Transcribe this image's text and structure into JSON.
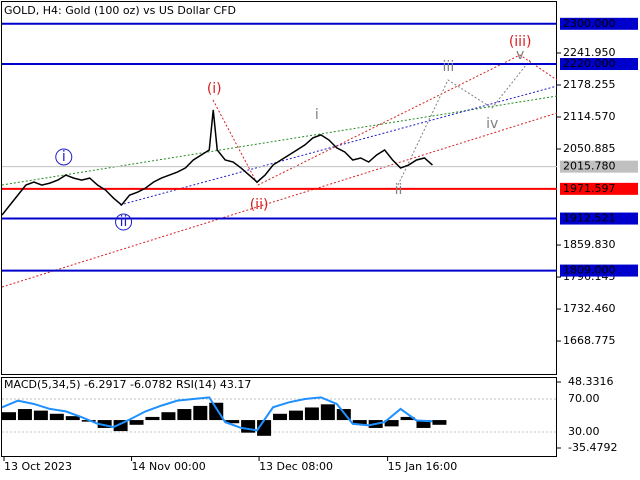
{
  "chart_data": [
    {
      "type": "line",
      "title": "GOLD, H4:  Gold (100 oz) vs US Dollar CFD",
      "x": [
        0,
        8,
        16,
        24,
        32,
        40,
        48,
        56,
        64,
        72,
        80,
        88,
        96,
        104,
        112,
        120,
        128,
        136,
        144,
        152,
        160,
        168,
        176,
        184,
        192,
        200,
        208,
        212,
        216,
        224,
        232,
        240,
        248,
        256,
        264,
        272,
        280,
        288,
        296,
        304,
        312,
        320,
        328,
        336,
        344,
        352,
        360,
        368,
        376,
        384,
        392,
        400,
        408,
        416,
        424,
        432
      ],
      "series": [
        {
          "name": "GOLD",
          "color": "#000000",
          "values": [
            1919.5,
            1939.5,
            1959.4,
            1979.2,
            1985.2,
            1979,
            1983,
            1989,
            1999,
            1993,
            1989,
            1993,
            1979,
            1969,
            1953,
            1939.5,
            1959,
            1965,
            1973,
            1985,
            1993,
            1999,
            2005,
            2013,
            2029,
            2039,
            2049,
            2128.5,
            2049,
            2029,
            2025,
            2013,
            1999,
            1985,
            1999,
            2019,
            2029,
            2039,
            2049,
            2059,
            2073,
            2079,
            2069,
            2053,
            2045,
            2029,
            2033,
            2025,
            2039,
            2049,
            2029,
            2013,
            2019,
            2029,
            2033,
            2019
          ]
        }
      ],
      "xlim": [
        0,
        557
      ],
      "xticks": [
        {
          "value": 2,
          "label": "13 Oct 2023"
        },
        {
          "value": 130,
          "label": "14 Nov 00:00"
        },
        {
          "value": 258,
          "label": "13 Dec 08:00"
        },
        {
          "value": 387,
          "label": "15 Jan 16:00"
        }
      ],
      "ylim": [
        1601.2,
        2343.4
      ],
      "yticks": [
        {
          "value": 2241.95,
          "label": "2241.950"
        },
        {
          "value": 2178.255,
          "label": "2178.255"
        },
        {
          "value": 2114.57,
          "label": "2114.570"
        },
        {
          "value": 2050.885,
          "label": "2050.885"
        },
        {
          "value": 1859.83,
          "label": "1859.830"
        },
        {
          "value": 1796.145,
          "label": "1796.145"
        },
        {
          "value": 1732.46,
          "label": "1732.460"
        },
        {
          "value": 1668.775,
          "label": "1668.775"
        }
      ],
      "levels": [
        {
          "value": 2300,
          "label": "2300.000",
          "color": "#0000cc"
        },
        {
          "value": 2220,
          "label": "2220.000",
          "color": "#0000cc"
        },
        {
          "value": 1971.597,
          "label": "1971.597",
          "color": "#ff0000"
        },
        {
          "value": 1912.521,
          "label": "1912.521",
          "color": "#0000cc"
        },
        {
          "value": 1809,
          "label": "1809.000",
          "color": "#0000cc"
        }
      ],
      "last_price": {
        "value": 2015.78,
        "label": "2015.780",
        "color": "#c0c0c0"
      },
      "annotations": [
        {
          "text": "i",
          "x": 62,
          "y": 2035,
          "color": "#1c1cc8",
          "circled": true
        },
        {
          "text": "ii",
          "x": 122,
          "y": 1905.6,
          "color": "#1c1cc8",
          "circled": true
        },
        {
          "text": "(i)",
          "x": 213,
          "y": 2170.3,
          "color": "#d62020"
        },
        {
          "text": "(ii)",
          "x": 258,
          "y": 1939.5,
          "color": "#d62020"
        },
        {
          "text": "i",
          "x": 316,
          "y": 2118.5,
          "color": "#808080"
        },
        {
          "text": "ii",
          "x": 398,
          "y": 1969.3,
          "color": "#808080"
        },
        {
          "text": "iii",
          "x": 448,
          "y": 2214,
          "color": "#808080"
        },
        {
          "text": "iv",
          "x": 492,
          "y": 2100.6,
          "color": "#808080"
        },
        {
          "text": "v",
          "x": 520,
          "y": 2238,
          "color": "#808080"
        },
        {
          "text": "(iii)",
          "x": 520,
          "y": 2263.8,
          "color": "#d62020"
        }
      ]
    },
    {
      "type": "indicator",
      "title": "MACD(5,34,5) -6.2917 -6.0782 RSI(14) 43.17",
      "x": [
        0,
        16,
        32,
        48,
        64,
        80,
        96,
        112,
        128,
        144,
        160,
        176,
        192,
        208,
        224,
        240,
        256,
        272,
        288,
        304,
        320,
        336,
        352,
        368,
        384,
        400,
        416,
        432
      ],
      "xlim": [
        0,
        557
      ],
      "series": [
        {
          "name": "MACD",
          "color": "#000000",
          "axis": "y2",
          "values": [
            10,
            14,
            12,
            8,
            5,
            -2,
            -10,
            -14,
            -6,
            4,
            10,
            14,
            18,
            22,
            -4,
            -16,
            -20,
            8,
            12,
            16,
            20,
            14,
            -6,
            -10,
            -8,
            4,
            -10,
            -6
          ]
        },
        {
          "name": "RSI",
          "color": "#1e90ff",
          "values": [
            60,
            68,
            64,
            58,
            55,
            48,
            40,
            36,
            45,
            55,
            62,
            68,
            70,
            72,
            42,
            35,
            32,
            60,
            66,
            70,
            72,
            64,
            40,
            38,
            42,
            58,
            44,
            43
          ]
        }
      ],
      "ylim": [
        -0.3,
        96.7
      ],
      "yticks": [
        {
          "value": 70,
          "label": "70.00"
        },
        {
          "value": 30,
          "label": "30.00"
        }
      ],
      "y2lim": [
        -46.9,
        54.7
      ],
      "y2ticks": [
        48.3316,
        -35.4792
      ]
    }
  ]
}
